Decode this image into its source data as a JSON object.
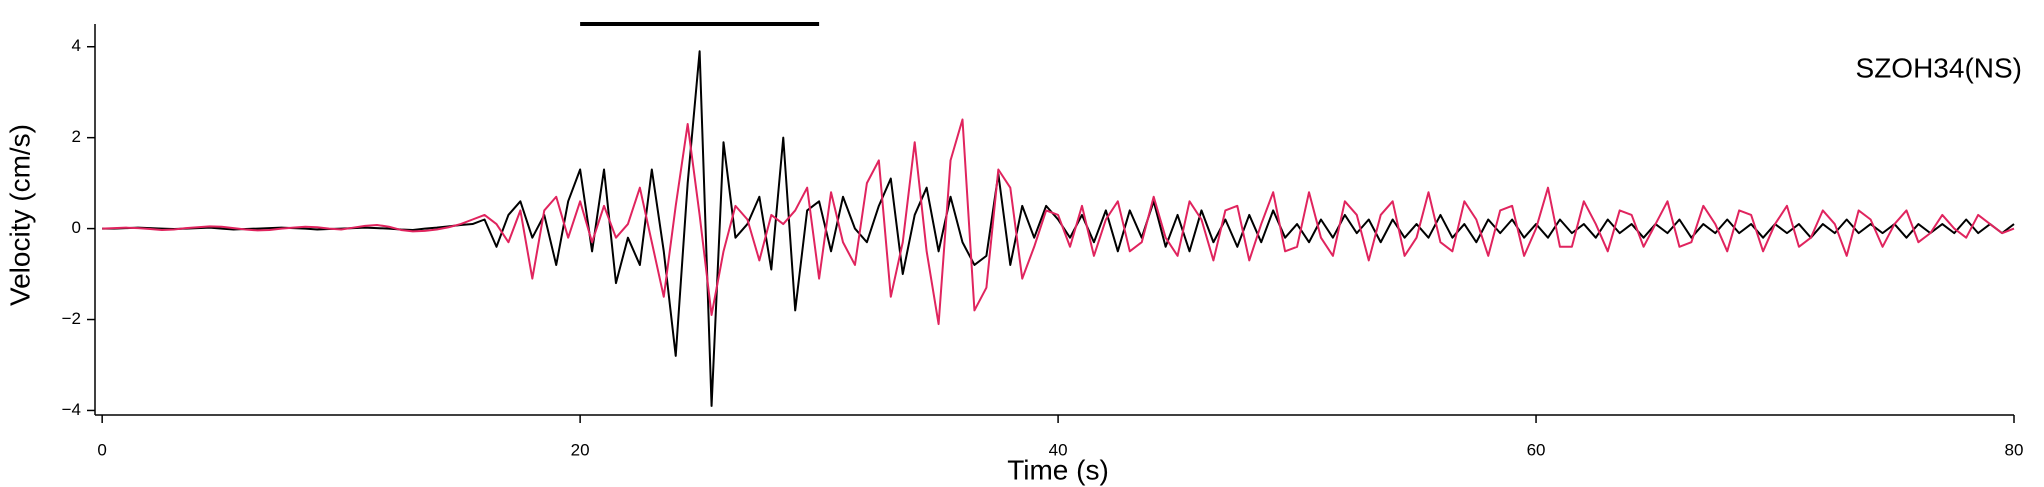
{
  "chart_data": {
    "type": "line",
    "annotation": "SZOH34(NS)",
    "x_label": "Time (s)",
    "y_label": "Velocity (cm/s)",
    "window": [
      20,
      30
    ],
    "xlim": [
      -0.3,
      80
    ],
    "xticks": [
      0,
      20,
      40,
      60,
      80
    ],
    "ylim": [
      -4.1,
      4.5
    ],
    "yticks": [
      {
        "value": -4,
        "label": "−4"
      },
      {
        "value": -2,
        "label": "−2"
      },
      0,
      2,
      4
    ],
    "x": [
      0,
      0.5,
      1,
      1.5,
      2,
      2.5,
      3,
      3.5,
      4,
      4.5,
      5,
      5.5,
      6,
      6.5,
      7,
      7.5,
      8,
      8.5,
      9,
      9.5,
      10,
      10.5,
      11,
      11.5,
      12,
      12.5,
      13,
      13.5,
      14,
      14.5,
      15,
      15.5,
      16,
      16.5,
      17,
      17.5,
      18,
      18.5,
      19,
      19.5,
      20,
      20.5,
      21,
      21.5,
      22,
      22.5,
      23,
      23.5,
      24,
      24.5,
      25,
      25.5,
      26,
      26.5,
      27,
      27.5,
      28,
      28.5,
      29,
      29.5,
      30,
      30.5,
      31,
      31.5,
      32,
      32.5,
      33,
      33.5,
      34,
      34.5,
      35,
      35.5,
      36,
      36.5,
      37,
      37.5,
      38,
      38.5,
      39,
      39.5,
      40,
      40.5,
      41,
      41.5,
      42,
      42.5,
      43,
      43.5,
      44,
      44.5,
      45,
      45.5,
      46,
      46.5,
      47,
      47.5,
      48,
      48.5,
      49,
      49.5,
      50,
      50.5,
      51,
      51.5,
      52,
      52.5,
      53,
      53.5,
      54,
      54.5,
      55,
      55.5,
      56,
      56.5,
      57,
      57.5,
      58,
      58.5,
      59,
      59.5,
      60,
      60.5,
      61,
      61.5,
      62,
      62.5,
      63,
      63.5,
      64,
      64.5,
      65,
      65.5,
      66,
      66.5,
      67,
      67.5,
      68,
      68.5,
      69,
      69.5,
      70,
      70.5,
      71,
      71.5,
      72,
      72.5,
      73,
      73.5,
      74,
      74.5,
      75,
      75.5,
      76,
      76.5,
      77,
      77.5,
      78,
      78.5,
      79,
      79.5,
      80
    ],
    "series": [
      {
        "color": "#000000",
        "values": [
          0,
          0,
          0.01,
          0.02,
          0.01,
          0,
          -0.01,
          0,
          0.01,
          0.02,
          0,
          -0.02,
          -0.01,
          0,
          0.01,
          0.02,
          0.01,
          0,
          -0.02,
          -0.01,
          0,
          0.01,
          0.02,
          0.01,
          0,
          -0.02,
          -0.03,
          0,
          0.02,
          0.05,
          0.08,
          0.1,
          0.2,
          -0.4,
          0.3,
          0.6,
          -0.2,
          0.3,
          -0.8,
          0.6,
          1.3,
          -0.5,
          1.3,
          -1.2,
          -0.2,
          -0.8,
          1.3,
          -0.5,
          -2.8,
          1.0,
          3.9,
          -3.9,
          1.9,
          -0.2,
          0.1,
          0.7,
          -0.9,
          2.0,
          -1.8,
          0.4,
          0.6,
          -0.5,
          0.7,
          0,
          -0.3,
          0.5,
          1.1,
          -1.0,
          0.3,
          0.9,
          -0.5,
          0.7,
          -0.3,
          -0.8,
          -0.6,
          1.2,
          -0.8,
          0.5,
          -0.2,
          0.5,
          0.2,
          -0.2,
          0.3,
          -0.3,
          0.4,
          -0.5,
          0.4,
          -0.2,
          0.6,
          -0.4,
          0.3,
          -0.5,
          0.4,
          -0.3,
          0.2,
          -0.4,
          0.3,
          -0.3,
          0.4,
          -0.2,
          0.1,
          -0.3,
          0.2,
          -0.2,
          0.3,
          -0.1,
          0.2,
          -0.3,
          0.2,
          -0.2,
          0.1,
          -0.2,
          0.3,
          -0.2,
          0.1,
          -0.3,
          0.2,
          -0.1,
          0.2,
          -0.2,
          0.1,
          -0.2,
          0.2,
          -0.1,
          0.1,
          -0.2,
          0.2,
          -0.1,
          0.1,
          -0.2,
          0.1,
          -0.1,
          0.2,
          -0.2,
          0.1,
          -0.1,
          0.2,
          -0.1,
          0.1,
          -0.2,
          0.1,
          -0.1,
          0.1,
          -0.2,
          0.1,
          -0.1,
          0.2,
          -0.1,
          0.1,
          -0.1,
          0.1,
          -0.2,
          0.1,
          -0.1,
          0.1,
          -0.1,
          0.2,
          -0.1,
          0.1,
          -0.1,
          0.1
        ]
      },
      {
        "color": "#e0245e",
        "values": [
          0,
          0.01,
          0.02,
          0.01,
          -0.01,
          -0.03,
          -0.02,
          0.01,
          0.03,
          0.05,
          0.04,
          0.01,
          -0.02,
          -0.04,
          -0.03,
          0,
          0.02,
          0.04,
          0.03,
          0,
          -0.02,
          0.02,
          0.06,
          0.08,
          0.04,
          -0.03,
          -0.06,
          -0.05,
          -0.02,
          0.03,
          0.1,
          0.2,
          0.3,
          0.1,
          -0.3,
          0.4,
          -1.1,
          0.4,
          0.7,
          -0.2,
          0.6,
          -0.3,
          0.5,
          -0.2,
          0.1,
          0.9,
          -0.3,
          -1.5,
          0.5,
          2.3,
          0.3,
          -1.9,
          -0.5,
          0.5,
          0.2,
          -0.7,
          0.3,
          0.1,
          0.4,
          0.9,
          -1.1,
          0.8,
          -0.3,
          -0.8,
          1.0,
          1.5,
          -1.5,
          -0.3,
          1.9,
          -0.5,
          -2.1,
          1.5,
          2.4,
          -1.8,
          -1.3,
          1.3,
          0.9,
          -1.1,
          -0.4,
          0.4,
          0.3,
          -0.4,
          0.5,
          -0.6,
          0.2,
          0.6,
          -0.5,
          -0.3,
          0.7,
          -0.2,
          -0.6,
          0.6,
          0.2,
          -0.7,
          0.4,
          0.5,
          -0.7,
          0.1,
          0.8,
          -0.5,
          -0.4,
          0.8,
          -0.2,
          -0.6,
          0.6,
          0.3,
          -0.7,
          0.3,
          0.6,
          -0.6,
          -0.2,
          0.8,
          -0.3,
          -0.5,
          0.6,
          0.2,
          -0.6,
          0.4,
          0.5,
          -0.6,
          0,
          0.9,
          -0.4,
          -0.4,
          0.6,
          0.1,
          -0.5,
          0.4,
          0.3,
          -0.4,
          0.1,
          0.6,
          -0.4,
          -0.3,
          0.5,
          0.1,
          -0.5,
          0.4,
          0.3,
          -0.5,
          0.1,
          0.5,
          -0.4,
          -0.2,
          0.4,
          0.1,
          -0.6,
          0.4,
          0.2,
          -0.4,
          0.1,
          0.4,
          -0.3,
          -0.1,
          0.3,
          0,
          -0.2,
          0.3,
          0.1,
          -0.1,
          0
        ]
      }
    ]
  }
}
